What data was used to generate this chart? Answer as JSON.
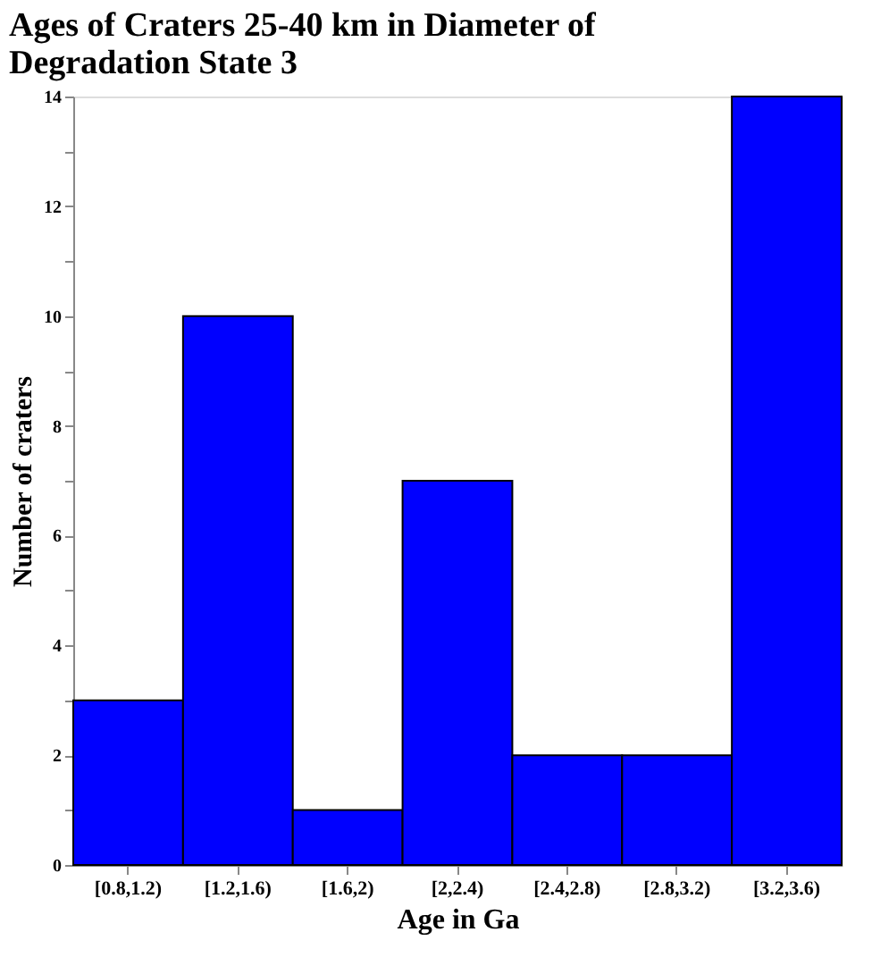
{
  "chart_data": {
    "type": "bar",
    "title": "Ages of Craters 25-40 km in Diameter of Degradation State 3",
    "xlabel": "Age in Ga",
    "ylabel": "Number of craters",
    "categories": [
      "[0.8,1.2)",
      "[1.2,1.6)",
      "[1.6,2)",
      "[2,2.4)",
      "[2.4,2.8)",
      "[2.8,3.2)",
      "[3.2,3.6)"
    ],
    "values": [
      3,
      10,
      1,
      7,
      2,
      2,
      14
    ],
    "color": "#0000ff",
    "ylim": [
      0,
      14
    ],
    "yticks": [
      0,
      {
        "value": 1,
        "label": null
      },
      2,
      {
        "value": 3,
        "label": null
      },
      4,
      {
        "value": 5,
        "label": null
      },
      6,
      {
        "value": 7,
        "label": null
      },
      8,
      {
        "value": 9,
        "label": null
      },
      10,
      {
        "value": 11,
        "label": null
      },
      12,
      {
        "value": 13,
        "label": null
      },
      14
    ],
    "grid": false
  }
}
